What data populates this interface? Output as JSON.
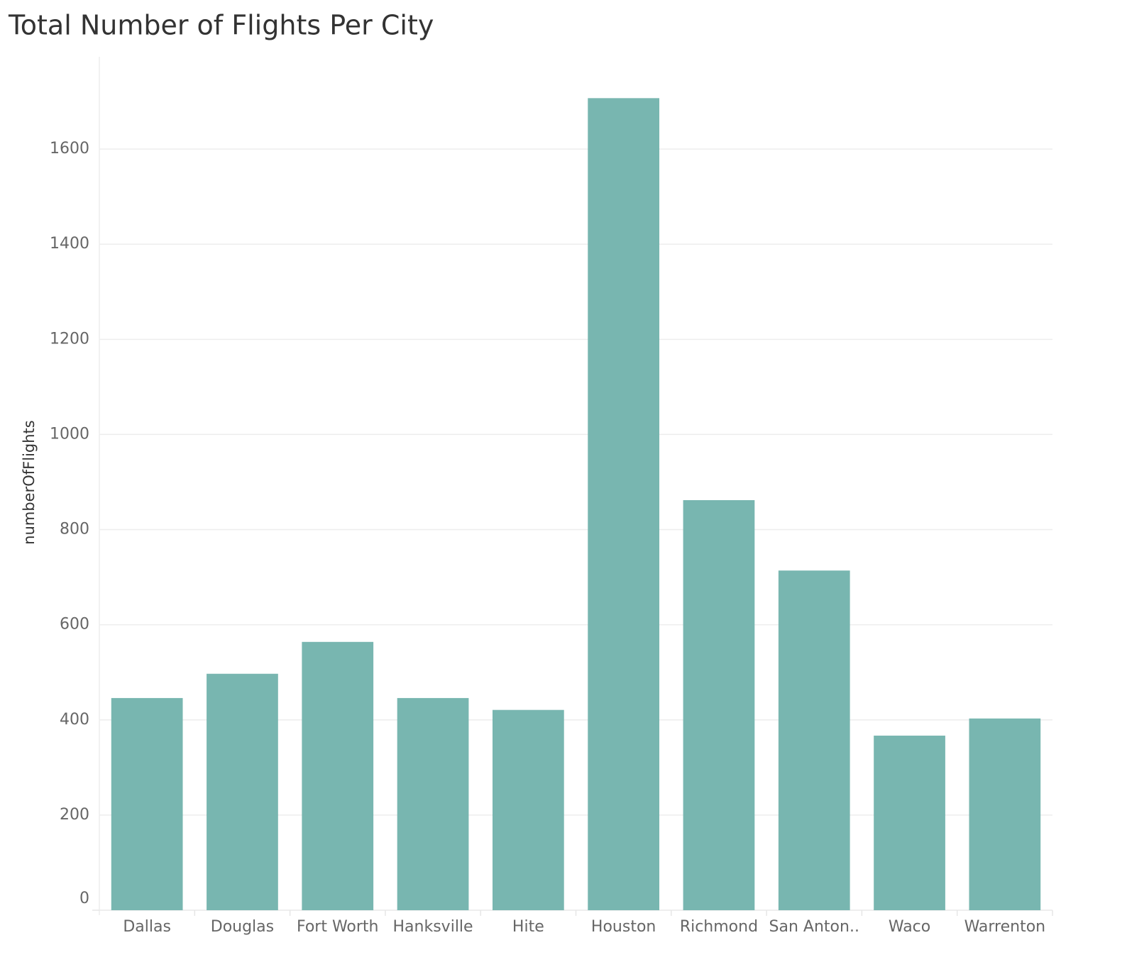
{
  "chart_data": {
    "type": "bar",
    "title": "Total Number of Flights Per City",
    "y_label": "numberOfFlights",
    "categories": [
      "Dallas",
      "Douglas",
      "Fort Worth",
      "Hanksville",
      "Hite",
      "Houston",
      "Richmond",
      "San Anton..",
      "Waco",
      "Warrenton"
    ],
    "values": [
      446,
      497,
      564,
      446,
      421,
      1707,
      862,
      714,
      367,
      403
    ],
    "color": "#78b6b0",
    "ylim": [
      0,
      1794
    ],
    "yticks": [
      0,
      200,
      400,
      600,
      800,
      1000,
      1200,
      1400,
      1600
    ],
    "grid": true
  }
}
